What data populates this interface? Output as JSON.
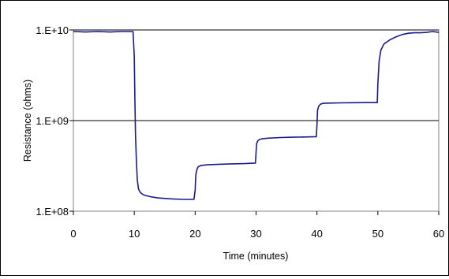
{
  "chart_data": {
    "type": "line",
    "title": "",
    "xlabel": "Time (minutes)",
    "ylabel": "Resistance (ohms)",
    "x_scale": "linear",
    "y_scale": "log",
    "xlim": [
      0,
      60
    ],
    "ylim": [
      100000000,
      10000000000
    ],
    "x_ticks": [
      0,
      10,
      20,
      30,
      40,
      50,
      60
    ],
    "x_tick_labels": [
      "0",
      "10",
      "20",
      "30",
      "40",
      "50",
      "60"
    ],
    "y_ticks": [
      100000000,
      1000000000,
      10000000000
    ],
    "y_tick_labels": [
      "1.E+08",
      "1.E+09",
      "1.E+10"
    ],
    "grid": "horizontal major gridlines",
    "legend": "none",
    "line_color": "#1a1a8c",
    "series": [
      {
        "x": [
          0,
          2,
          4,
          6,
          8,
          9.8,
          10.0,
          10.1,
          10.2,
          10.35,
          10.5,
          10.7,
          11,
          11.5,
          12,
          13,
          14,
          16,
          18,
          19.8,
          20.0,
          20.1,
          20.3,
          20.5,
          21,
          22,
          24,
          26,
          28,
          29.9,
          30.0,
          30.1,
          30.3,
          30.6,
          31,
          32,
          34,
          36,
          38,
          39.9,
          40.0,
          40.1,
          40.3,
          40.6,
          41,
          42,
          44,
          46,
          48,
          49.9,
          50.0,
          50.2,
          50.5,
          51,
          52,
          53,
          54,
          55,
          56,
          57,
          58,
          59,
          60
        ],
        "y": [
          9600000000,
          9500000000,
          9600000000,
          9500000000,
          9600000000,
          9600000000,
          5000000000,
          1800000000,
          700000000,
          350000000,
          220000000,
          175000000,
          160000000,
          152000000,
          148000000,
          143000000,
          140000000,
          137000000,
          135000000,
          135000000,
          170000000,
          250000000,
          290000000,
          310000000,
          320000000,
          325000000,
          330000000,
          333000000,
          335000000,
          340000000,
          450000000,
          560000000,
          600000000,
          620000000,
          630000000,
          640000000,
          650000000,
          655000000,
          660000000,
          665000000,
          900000000,
          1300000000,
          1450000000,
          1520000000,
          1550000000,
          1560000000,
          1570000000,
          1575000000,
          1580000000,
          1580000000,
          2500000000,
          4500000000,
          6000000000,
          7000000000,
          7800000000,
          8400000000,
          8900000000,
          9200000000,
          9300000000,
          9300000000,
          9400000000,
          9600000000,
          9400000000
        ]
      }
    ]
  }
}
